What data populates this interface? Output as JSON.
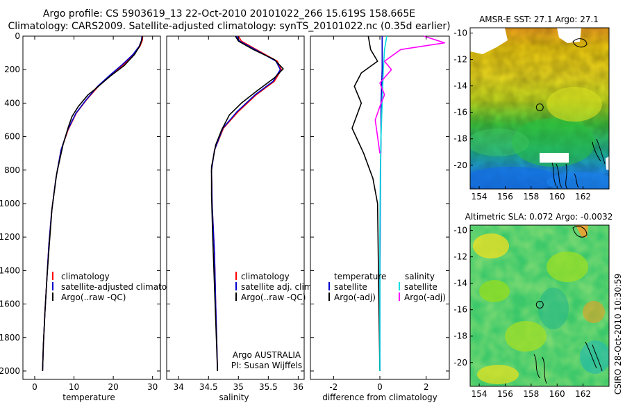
{
  "header": {
    "line1": "Argo profile: CS 5903619_13 22-Oct-2010 20101022_266 15.619S 158.665E",
    "line2": "Climatology: CARS2009. Satellite-adjusted climatology: synTS_20101022.nc (0.35d earlier)"
  },
  "side_label": "CSIRO 28-Oct-2010 10:30:59",
  "chart_data": [
    {
      "type": "line",
      "panel": "temperature",
      "xlabel": "temperature",
      "xlim": [
        -3,
        32
      ],
      "ylim": [
        2050,
        0
      ],
      "xticks": [
        0,
        10,
        20,
        30
      ],
      "yticks": [
        0,
        200,
        400,
        600,
        800,
        1000,
        1200,
        1400,
        1600,
        1800,
        2000
      ],
      "series": [
        {
          "name": "climatology",
          "color": "#ff0000",
          "x": [
            27.5,
            27.4,
            26.8,
            25.2,
            22.6,
            19.6,
            16.2,
            13.2,
            10.6,
            8.5,
            6.7,
            5.4,
            4.3,
            3.6,
            3.1,
            2.6,
            2.2,
            2.0
          ],
          "y": [
            0,
            25,
            60,
            110,
            170,
            230,
            300,
            380,
            460,
            560,
            680,
            850,
            1050,
            1250,
            1450,
            1650,
            1850,
            2000
          ]
        },
        {
          "name": "satellite-adjusted climatology",
          "color": "#0000cc",
          "x": [
            27.3,
            27.2,
            26.6,
            25.0,
            22.3,
            19.3,
            16.0,
            13.1,
            10.5,
            8.4,
            6.7,
            5.4,
            4.3,
            3.6,
            3.1,
            2.6,
            2.2,
            2.0
          ],
          "y": [
            0,
            25,
            60,
            110,
            170,
            230,
            300,
            380,
            460,
            560,
            680,
            850,
            1050,
            1250,
            1450,
            1650,
            1850,
            2000
          ]
        },
        {
          "name": "Argo(..raw -QC)",
          "color": "#000000",
          "x": [
            27.4,
            27.3,
            26.7,
            25.4,
            22.8,
            19.2,
            15.2,
            13.6,
            11.1,
            9.5,
            8.6,
            7.2,
            5.6,
            4.4,
            3.7,
            3.1,
            2.6,
            2.2,
            2.0
          ],
          "y": [
            0,
            20,
            60,
            110,
            175,
            240,
            320,
            350,
            420,
            480,
            540,
            650,
            820,
            1030,
            1250,
            1450,
            1650,
            1850,
            2000
          ]
        }
      ]
    },
    {
      "type": "line",
      "panel": "salinity",
      "xlabel": "salinity",
      "xlim": [
        33.8,
        36.1
      ],
      "ylim": [
        2050,
        0
      ],
      "xticks": [
        34,
        34.5,
        35,
        35.5,
        36
      ],
      "series": [
        {
          "name": "climatology",
          "color": "#ff0000",
          "x": [
            35.0,
            35.05,
            35.3,
            35.65,
            35.72,
            35.6,
            35.3,
            35.0,
            34.75,
            34.6,
            34.55,
            34.56,
            34.6,
            34.62,
            34.64,
            34.65
          ],
          "y": [
            0,
            30,
            80,
            150,
            200,
            270,
            350,
            450,
            550,
            680,
            800,
            1000,
            1300,
            1600,
            1850,
            2000
          ]
        },
        {
          "name": "satellite adj. clim.",
          "color": "#0000cc",
          "x": [
            34.97,
            35.02,
            35.28,
            35.63,
            35.7,
            35.58,
            35.28,
            34.98,
            34.74,
            34.6,
            34.55,
            34.56,
            34.6,
            34.62,
            34.64,
            34.65
          ],
          "y": [
            0,
            30,
            80,
            150,
            200,
            270,
            350,
            450,
            550,
            680,
            800,
            1000,
            1300,
            1600,
            1850,
            2000
          ]
        },
        {
          "name": "Argo(..raw -QC)",
          "color": "#000000",
          "x": [
            34.95,
            35.0,
            35.25,
            35.6,
            35.75,
            35.6,
            35.3,
            35.05,
            34.85,
            34.72,
            34.62,
            34.55,
            34.55,
            34.57,
            34.6,
            34.63,
            34.65
          ],
          "y": [
            0,
            30,
            80,
            140,
            195,
            250,
            330,
            400,
            470,
            560,
            650,
            780,
            950,
            1200,
            1500,
            1800,
            2000
          ]
        }
      ],
      "annotation": [
        "Argo AUSTRALIA",
        "PI: Susan Wijffels"
      ]
    },
    {
      "type": "line",
      "panel": "difference",
      "xlabel": "difference from climatology",
      "xlim": [
        -3,
        3
      ],
      "ylim": [
        2050,
        0
      ],
      "xticks": [
        -2,
        0,
        2
      ],
      "legend_groups": [
        "temperature",
        "salinity"
      ],
      "series": [
        {
          "name": "satellite",
          "group": "temperature",
          "color": "#0000cc",
          "x": [
            0.1,
            0.1,
            0.05,
            0.05,
            0.03,
            0.02,
            0.0,
            0.0
          ],
          "y": [
            0,
            200,
            400,
            600,
            800,
            1000,
            1500,
            2000
          ]
        },
        {
          "name": "Argo(-adj)",
          "group": "temperature",
          "color": "#000000",
          "x": [
            -0.5,
            -0.4,
            -0.1,
            -0.8,
            -1.1,
            -0.8,
            -1.2,
            -0.7,
            -0.3,
            -0.1,
            -0.05,
            0.0
          ],
          "y": [
            0,
            80,
            150,
            220,
            300,
            400,
            550,
            700,
            850,
            1000,
            1500,
            2000
          ]
        },
        {
          "name": "satellite",
          "group": "salinity",
          "color": "#00dddd",
          "x": [
            0.3,
            0.2,
            0.15,
            0.1,
            0.05,
            0.02,
            0.0,
            0.0
          ],
          "y": [
            0,
            80,
            200,
            400,
            600,
            800,
            1200,
            2000
          ]
        },
        {
          "name": "Argo(-adj)",
          "group": "salinity",
          "color": "#ff00ff",
          "x": [
            1.9,
            2.8,
            0.9,
            0.2,
            0.5,
            0.0,
            0.2,
            0.0,
            -0.2,
            -0.1,
            0.0
          ],
          "y": [
            0,
            40,
            80,
            150,
            200,
            280,
            350,
            420,
            500,
            600,
            700
          ]
        }
      ]
    },
    {
      "type": "heatmap",
      "panel": "sst_map",
      "title": "AMSR-E SST: 27.1 Argo: 27.1",
      "xlim": [
        153.3,
        164.0
      ],
      "ylim": [
        -21.8,
        -9.6
      ],
      "xticks": [
        154,
        156,
        158,
        160,
        162
      ],
      "yticks": [
        -10,
        -12,
        -14,
        -16,
        -18,
        -20
      ],
      "argo_position": {
        "lon": 158.665,
        "lat": -15.619
      }
    },
    {
      "type": "heatmap",
      "panel": "sla_map",
      "title": "Altimetric SLA: 0.072 Argo: -0.0032",
      "xlim": [
        153.3,
        164.0
      ],
      "ylim": [
        -21.8,
        -9.6
      ],
      "xticks": [
        154,
        156,
        158,
        160,
        162
      ],
      "yticks": [
        -10,
        -12,
        -14,
        -16,
        -18,
        -20
      ],
      "argo_position": {
        "lon": 158.665,
        "lat": -15.619
      }
    }
  ]
}
